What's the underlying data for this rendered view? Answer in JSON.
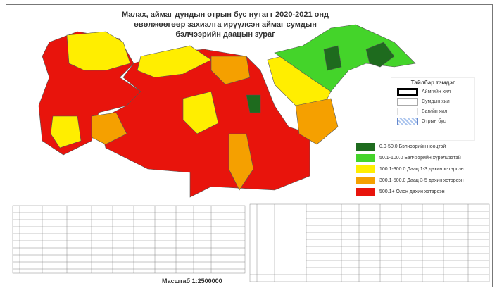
{
  "title": [
    "Малах, аймаг дундын отрын бус нутагт 2020-2021 онд",
    "өвөлжөөгөөр захиалга ирүүлсэн аймаг сумдын",
    "бэлчээрийн даацын зураг"
  ],
  "legend": {
    "heading": "Тайлбар тэмдэг",
    "items": [
      {
        "label": "Аймгийн хил",
        "style": "thick-black"
      },
      {
        "label": "Сумдын хил",
        "style": "thin-gray"
      },
      {
        "label": "Багийн хил",
        "style": "thin-light"
      },
      {
        "label": "Отрын бус",
        "style": "hatched-blue"
      }
    ]
  },
  "classes": [
    {
      "label": "0.0-50.0 Бэлчээрийн нөөцтэй",
      "color": "#1e6b1e"
    },
    {
      "label": "50.1-100.0 Бэлчээрийн хүрэлцээтэй",
      "color": "#44d42a"
    },
    {
      "label": "100.1-300.0 Даац 1-3 дахин хэтэрсэн",
      "color": "#ffee00"
    },
    {
      "label": "300.1-500.0 Даац 3-5 дахин хэтэрсэн",
      "color": "#f5a000"
    },
    {
      "label": "500.1+ Олон дахин хэтэрсэн",
      "color": "#e8140c"
    }
  ],
  "scale": "Масштаб 1:2500000"
}
